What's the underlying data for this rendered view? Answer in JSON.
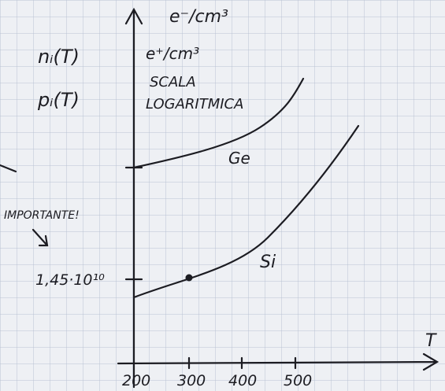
{
  "axes": {
    "y_label_top": "e⁻/cm³",
    "y_label_bottom": "e⁺/cm³",
    "x_label": "T",
    "x_ticks": [
      "200",
      "300",
      "400",
      "500"
    ]
  },
  "left_labels": [
    "nᵢ(T)",
    "pᵢ(T)"
  ],
  "note": [
    "SCALA",
    "LOGARITMICA"
  ],
  "curves": [
    {
      "label": "Ge"
    },
    {
      "label": "Si"
    }
  ],
  "annotation": "IMPORTANTE!",
  "tick_label": "1,45·10¹⁰"
}
